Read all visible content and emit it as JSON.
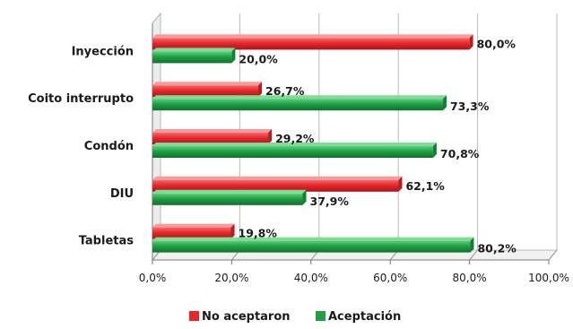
{
  "chart_data": {
    "type": "bar",
    "orientation": "horizontal",
    "categories": [
      "Inyección",
      "Coito interrupto",
      "Condón",
      "DIU",
      "Tabletas"
    ],
    "series": [
      {
        "name": "No aceptaron",
        "color": "#e8262a",
        "values": [
          80.0,
          26.7,
          29.2,
          62.1,
          19.8
        ],
        "labels": [
          "80,0%",
          "26,7%",
          "29,2%",
          "62,1%",
          "19,8%"
        ]
      },
      {
        "name": "Aceptación",
        "color": "#1fa043",
        "values": [
          20.0,
          73.3,
          70.8,
          37.9,
          80.2
        ],
        "labels": [
          "20,0%",
          "73,3%",
          "70,8%",
          "37,9%",
          "80,2%"
        ]
      }
    ],
    "x_ticks": [
      "0,0%",
      "20,0%",
      "40,0%",
      "60,0%",
      "80,0%",
      "100,0%"
    ],
    "xlim": [
      0,
      100
    ],
    "grid": "vertical",
    "legend": "bottom"
  }
}
